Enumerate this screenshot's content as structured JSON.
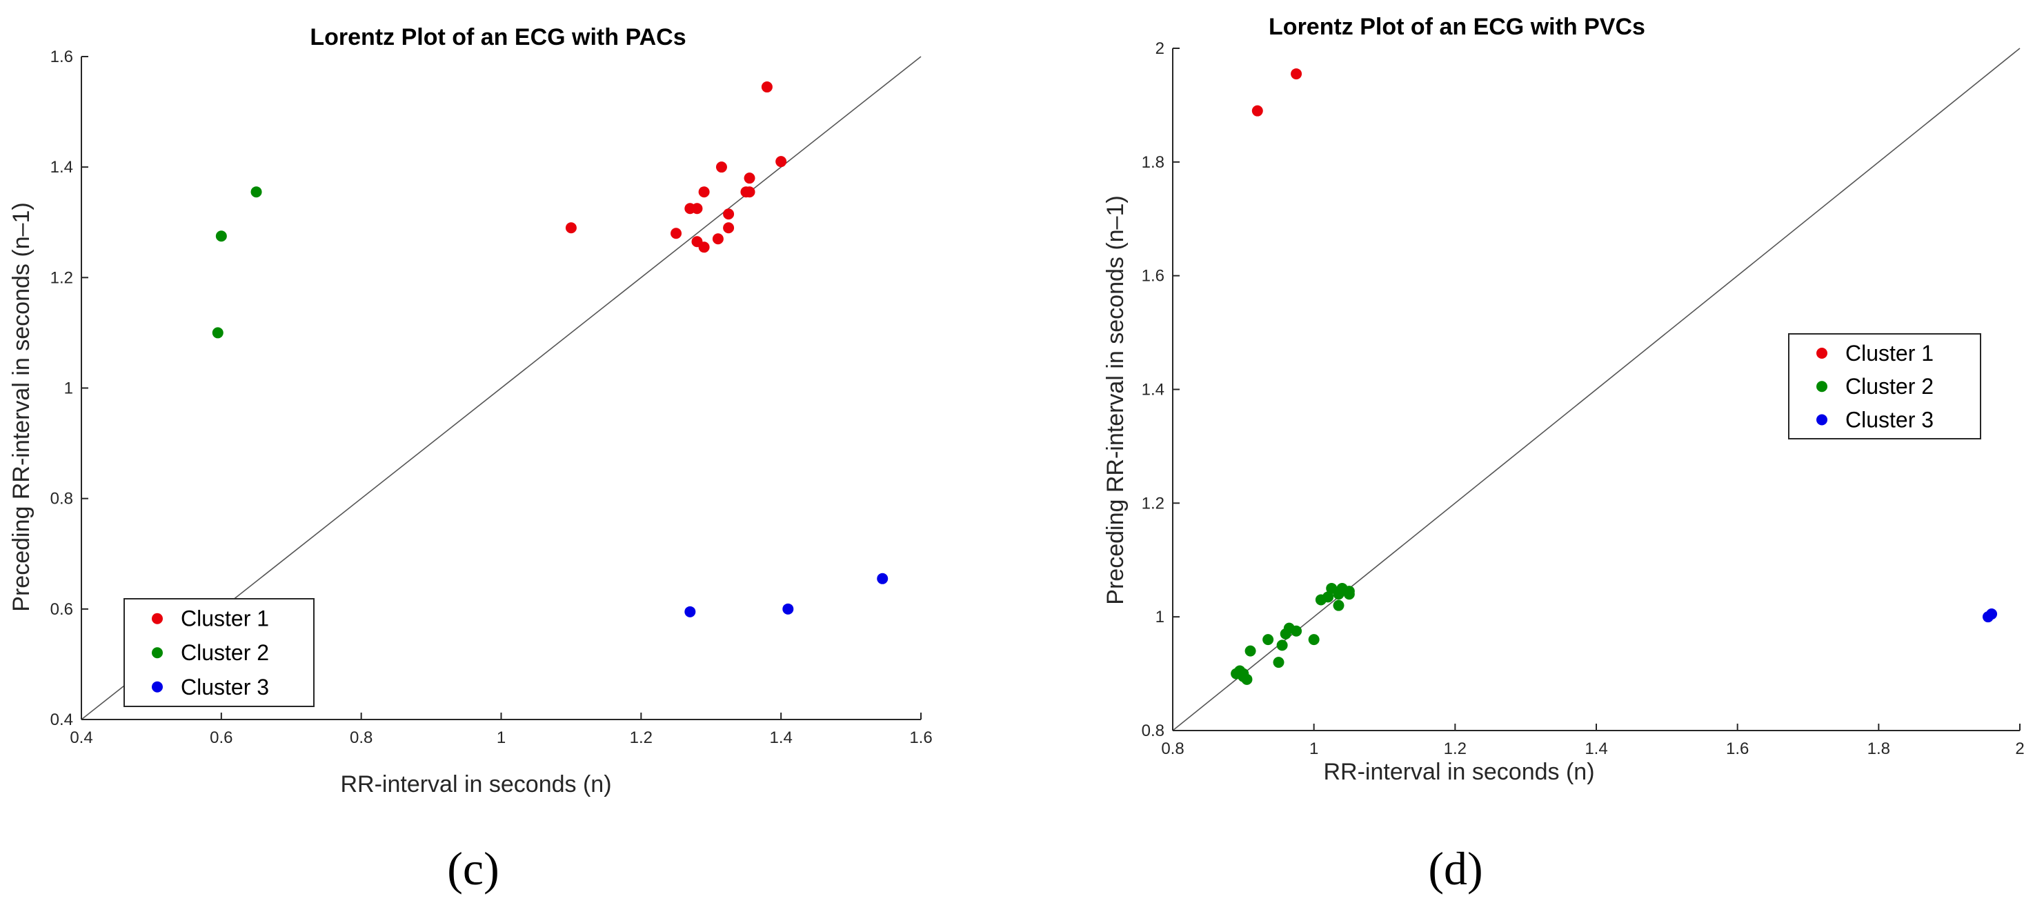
{
  "chart_data": [
    {
      "type": "scatter",
      "title": "Lorentz Plot of an ECG with PACs",
      "xlabel": "RR-interval in seconds (n)",
      "ylabel": "Preceding RR-interval in seconds (n–1)",
      "xlim": [
        0.4,
        1.6
      ],
      "ylim": [
        0.4,
        1.6
      ],
      "xticks": [
        "0.4",
        "0.6",
        "0.8",
        "1",
        "1.2",
        "1.4",
        "1.6"
      ],
      "yticks": [
        "0.4",
        "0.6",
        "0.8",
        "1",
        "1.2",
        "1.4",
        "1.6"
      ],
      "identity_line": true,
      "legend_position": "bottom-left",
      "caption": "(c)",
      "series": [
        {
          "name": "Cluster 1",
          "color": "#e8000b",
          "points": [
            [
              1.1,
              1.29
            ],
            [
              1.25,
              1.28
            ],
            [
              1.27,
              1.325
            ],
            [
              1.28,
              1.325
            ],
            [
              1.28,
              1.265
            ],
            [
              1.29,
              1.355
            ],
            [
              1.29,
              1.255
            ],
            [
              1.31,
              1.27
            ],
            [
              1.315,
              1.4
            ],
            [
              1.325,
              1.315
            ],
            [
              1.325,
              1.29
            ],
            [
              1.35,
              1.355
            ],
            [
              1.355,
              1.355
            ],
            [
              1.355,
              1.38
            ],
            [
              1.38,
              1.545
            ],
            [
              1.4,
              1.41
            ]
          ]
        },
        {
          "name": "Cluster 2",
          "color": "#008a00",
          "points": [
            [
              0.595,
              1.1
            ],
            [
              0.6,
              1.275
            ],
            [
              0.65,
              1.355
            ]
          ]
        },
        {
          "name": "Cluster 3",
          "color": "#0000e8",
          "points": [
            [
              1.27,
              0.595
            ],
            [
              1.41,
              0.6
            ],
            [
              1.545,
              0.655
            ]
          ]
        }
      ]
    },
    {
      "type": "scatter",
      "title": "Lorentz Plot of an ECG with PVCs",
      "xlabel": "RR-interval in seconds (n)",
      "ylabel": "Preceding RR-interval in seconds (n–1)",
      "xlim": [
        0.8,
        2.0
      ],
      "ylim": [
        0.8,
        2.0
      ],
      "xticks": [
        "0.8",
        "1",
        "1.2",
        "1.4",
        "1.6",
        "1.8",
        "2"
      ],
      "yticks": [
        "0.8",
        "1",
        "1.2",
        "1.4",
        "1.6",
        "1.8",
        "2"
      ],
      "identity_line": true,
      "legend_position": "right",
      "caption": "(d)",
      "series": [
        {
          "name": "Cluster 1",
          "color": "#e8000b",
          "points": [
            [
              0.92,
              1.89
            ],
            [
              0.975,
              1.955
            ]
          ]
        },
        {
          "name": "Cluster 2",
          "color": "#008a00",
          "points": [
            [
              0.89,
              0.9
            ],
            [
              0.895,
              0.905
            ],
            [
              0.9,
              0.9
            ],
            [
              0.9,
              0.895
            ],
            [
              0.905,
              0.89
            ],
            [
              0.91,
              0.94
            ],
            [
              0.935,
              0.96
            ],
            [
              0.95,
              0.92
            ],
            [
              0.955,
              0.95
            ],
            [
              0.96,
              0.97
            ],
            [
              0.965,
              0.98
            ],
            [
              0.975,
              0.975
            ],
            [
              1.0,
              0.96
            ],
            [
              1.01,
              1.03
            ],
            [
              1.02,
              1.035
            ],
            [
              1.025,
              1.05
            ],
            [
              1.035,
              1.04
            ],
            [
              1.035,
              1.02
            ],
            [
              1.04,
              1.05
            ],
            [
              1.05,
              1.04
            ],
            [
              1.05,
              1.045
            ]
          ]
        },
        {
          "name": "Cluster 3",
          "color": "#0000e8",
          "points": [
            [
              1.955,
              1.0
            ],
            [
              1.96,
              1.005
            ]
          ]
        }
      ]
    }
  ]
}
